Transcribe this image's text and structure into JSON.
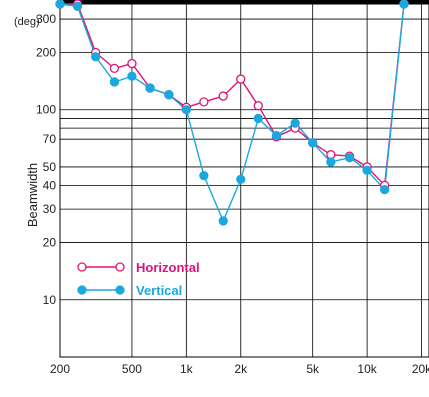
{
  "chart_data": {
    "type": "line",
    "title": "",
    "xlabel": "",
    "ylabel": "Beamwidth",
    "y_unit": "(deg)",
    "x_scale": "log",
    "y_scale": "log",
    "xlim": [
      200,
      22000
    ],
    "ylim": [
      5,
      360
    ],
    "grid": true,
    "legend_position": "lower-left",
    "x_tick_labels": [
      "200",
      "500",
      "1k",
      "2k",
      "5k",
      "10k",
      "20k"
    ],
    "y_tick_labels": [
      "10",
      "20",
      "30",
      "40",
      "50",
      "70",
      "100",
      "200",
      "300"
    ],
    "x": [
      200,
      250,
      315,
      400,
      500,
      630,
      800,
      1000,
      1250,
      1600,
      2000,
      2500,
      3150,
      4000,
      5000,
      6300,
      8000,
      10000,
      12500,
      16000,
      20000
    ],
    "series": [
      {
        "name": "Horizontal",
        "color": "#e0137a",
        "marker": "open-circle",
        "values": [
          360,
          360,
          200,
          165,
          175,
          130,
          120,
          103,
          110,
          118,
          145,
          105,
          72,
          80,
          67,
          58,
          57,
          50,
          40,
          360,
          null
        ]
      },
      {
        "name": "Vertical",
        "color": "#1aa8de",
        "marker": "filled-circle",
        "values": [
          360,
          350,
          190,
          140,
          150,
          130,
          120,
          100,
          45,
          26,
          43,
          90,
          73,
          85,
          67,
          53,
          56,
          48,
          38,
          360,
          null
        ]
      }
    ]
  }
}
